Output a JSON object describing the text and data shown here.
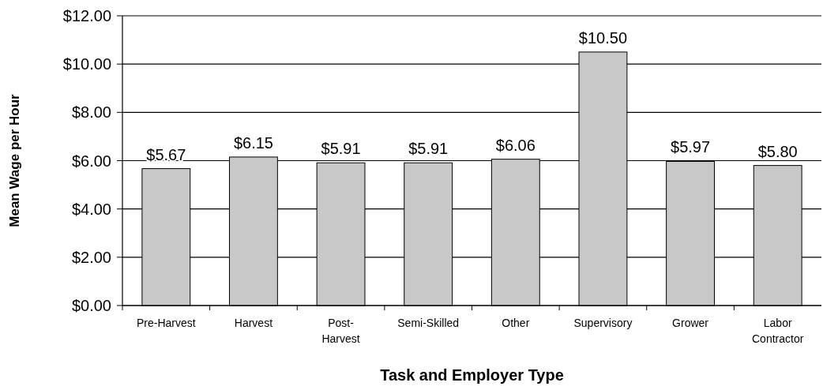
{
  "chart_data": {
    "type": "bar",
    "xlabel": "Task and Employer Type",
    "ylabel": "Mean Wage per Hour",
    "categories": [
      "Pre-Harvest",
      "Harvest",
      "Post-\nHarvest",
      "Semi-Skilled",
      "Other",
      "Supervisory",
      "Grower",
      "Labor\nContractor"
    ],
    "values": [
      5.67,
      6.15,
      5.91,
      5.91,
      6.06,
      10.5,
      5.97,
      5.8
    ],
    "value_labels": [
      "$5.67",
      "$6.15",
      "$5.91",
      "$5.91",
      "$6.06",
      "$10.50",
      "$5.97",
      "$5.80"
    ],
    "color": "#c8c8c8",
    "ylim": [
      0,
      12
    ],
    "yticks": [
      {
        "value": 0,
        "label": "$0.00"
      },
      {
        "value": 2,
        "label": "$2.00"
      },
      {
        "value": 4,
        "label": "$4.00"
      },
      {
        "value": 6,
        "label": "$6.00"
      },
      {
        "value": 8,
        "label": "$8.00"
      },
      {
        "value": 10,
        "label": "$10.00"
      },
      {
        "value": 12,
        "label": "$12.00"
      }
    ],
    "grid": "y"
  }
}
